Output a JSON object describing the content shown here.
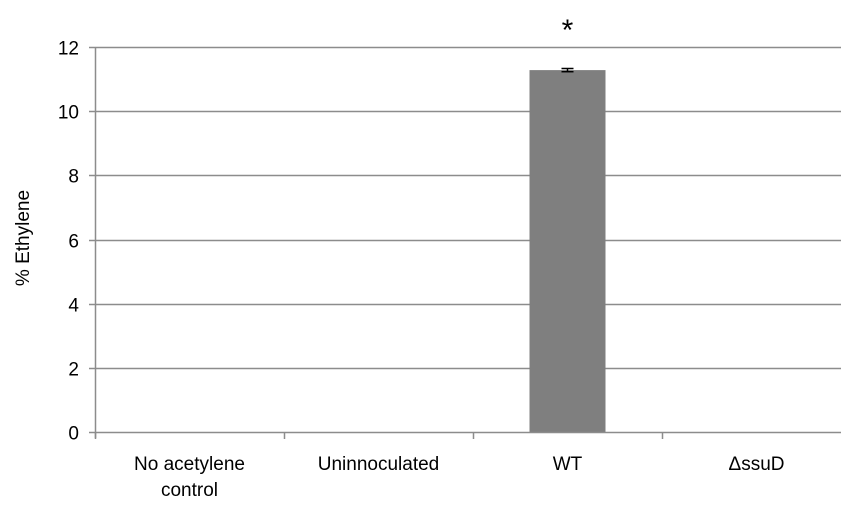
{
  "chart_data": {
    "type": "bar",
    "title": "",
    "xlabel": "",
    "ylabel": "% Ethylene",
    "categories": [
      [
        "No acetylene",
        "control"
      ],
      [
        "Uninnoculated"
      ],
      [
        "WT"
      ],
      [
        "ΔssuD"
      ]
    ],
    "values": [
      0,
      0,
      11.28,
      0
    ],
    "error": [
      0,
      0,
      0.05,
      0
    ],
    "annotations": [
      "",
      "",
      "*",
      ""
    ],
    "ylim": [
      0,
      12
    ],
    "yticks": [
      0,
      2,
      4,
      6,
      8,
      10,
      12
    ],
    "grid": true,
    "legend": "none",
    "colors": {
      "bar": "#7f7f7f",
      "grid": "#8c8c8c",
      "axis": "#8c8c8c",
      "errorbar": "#000000"
    }
  }
}
